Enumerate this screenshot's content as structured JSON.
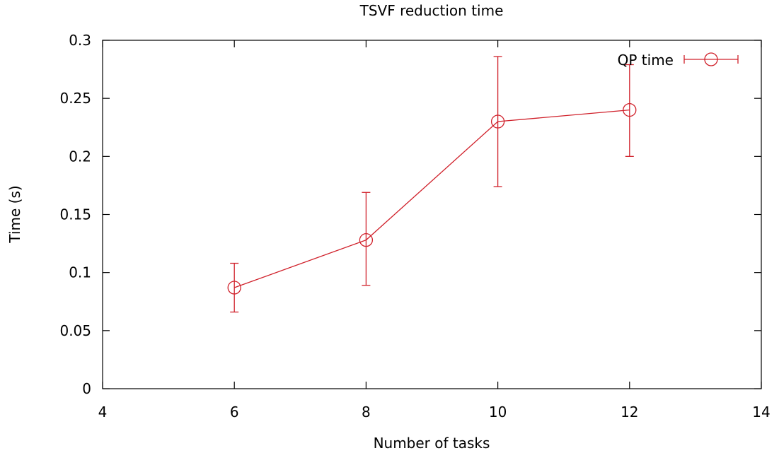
{
  "chart_data": {
    "type": "line",
    "title": "TSVF reduction time",
    "xlabel": "Number of tasks",
    "ylabel": "Time (s)",
    "xlim": [
      4,
      14
    ],
    "ylim": [
      0,
      0.3
    ],
    "xticks": [
      4,
      6,
      8,
      10,
      12,
      14
    ],
    "yticks": [
      0,
      0.05,
      0.1,
      0.15,
      0.2,
      0.25,
      0.3
    ],
    "xtick_labels": [
      "4",
      "6",
      "8",
      "10",
      "12",
      "14"
    ],
    "ytick_labels": [
      "0",
      "0.05",
      "0.1",
      "0.15",
      "0.2",
      "0.25",
      "0.3"
    ],
    "grid": false,
    "legend_position": "top-right",
    "series": [
      {
        "name": "QP time",
        "color": "#d0202a",
        "marker": "circle",
        "x": [
          6,
          8,
          10,
          12
        ],
        "y": [
          0.087,
          0.128,
          0.23,
          0.24
        ],
        "y_err_low": [
          0.066,
          0.089,
          0.174,
          0.2
        ],
        "y_err_high": [
          0.108,
          0.169,
          0.286,
          0.279
        ]
      }
    ]
  }
}
